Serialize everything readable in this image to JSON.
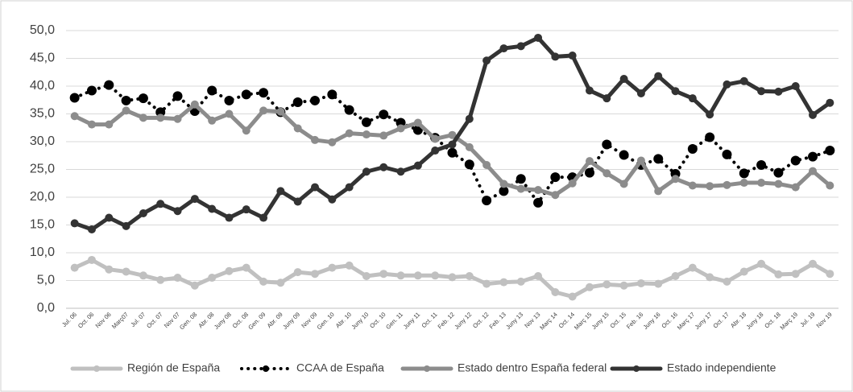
{
  "chart_data": {
    "type": "line",
    "categories": [
      "Jul. 06",
      "Oct. 06",
      "Nov 06",
      "Març07",
      "Jul. 07",
      "Oct. 07",
      "Nov 07",
      "Gen. 08",
      "Abr. 08",
      "Juny 08",
      "Oct. 08",
      "Gen. 09",
      "Abr. 09",
      "Juny 09",
      "Nov 09",
      "Gen. 10",
      "Abr. 10",
      "Juny 10",
      "Oct. 10",
      "Gen. 11",
      "Juny 11",
      "Oct. 11",
      "Feb. 12",
      "Juny 12",
      "Oct. 12",
      "Feb. 13",
      "Juny 13",
      "Nov 13",
      "Març 14",
      "Oct. 14",
      "Març 15",
      "Juny 15",
      "Oct. 15",
      "Feb. 16",
      "Juny 16",
      "Oct. 16",
      "Març 17",
      "Juny 17",
      "Oct. 17",
      "Abr. 18",
      "Juny 18",
      "Oct. 18",
      "Març 19",
      "Jul. 19",
      "Nov 19"
    ],
    "series": [
      {
        "name": "Región de España",
        "color": "#c0c0c0",
        "line_style": "solid",
        "values": [
          7.3,
          8.7,
          7.0,
          6.6,
          5.9,
          5.1,
          5.5,
          4.1,
          5.5,
          6.7,
          7.3,
          4.8,
          4.6,
          6.5,
          6.2,
          7.3,
          7.7,
          5.8,
          6.2,
          5.9,
          5.9,
          5.9,
          5.6,
          5.8,
          4.4,
          4.7,
          4.8,
          5.8,
          2.9,
          2.1,
          3.8,
          4.3,
          4.1,
          4.5,
          4.4,
          5.8,
          7.3,
          5.6,
          4.8,
          6.6,
          8.0,
          6.1,
          6.2,
          8.0,
          6.2
        ]
      },
      {
        "name": "CCAA de España",
        "color": "#000000",
        "line_style": "dotted",
        "values": [
          37.9,
          39.2,
          40.2,
          37.4,
          37.8,
          35.3,
          38.2,
          35.5,
          39.2,
          37.4,
          38.5,
          38.8,
          35.3,
          37.1,
          37.4,
          38.5,
          35.7,
          33.5,
          34.9,
          33.4,
          32.1,
          30.7,
          28.0,
          25.9,
          19.4,
          21.1,
          23.3,
          19.0,
          23.6,
          23.6,
          24.4,
          29.5,
          27.6,
          25.8,
          26.9,
          24.2,
          28.7,
          30.8,
          27.7,
          24.3,
          25.8,
          24.4,
          26.6,
          27.3,
          28.4
        ]
      },
      {
        "name": "Estado dentro España federal",
        "color": "#8c8c8c",
        "line_style": "solid",
        "values": [
          34.6,
          33.1,
          33.1,
          35.6,
          34.3,
          34.3,
          34.1,
          36.7,
          33.8,
          35.0,
          32.0,
          35.6,
          35.4,
          32.4,
          30.3,
          29.9,
          31.5,
          31.3,
          31.1,
          32.4,
          33.4,
          30.5,
          31.2,
          29.0,
          25.8,
          22.4,
          21.5,
          21.3,
          20.4,
          22.5,
          26.5,
          24.3,
          22.4,
          26.6,
          21.1,
          23.3,
          22.1,
          22.0,
          22.2,
          22.6,
          22.6,
          22.4,
          21.8,
          24.7,
          22.1
        ]
      },
      {
        "name": "Estado independiente",
        "color": "#333333",
        "line_style": "solid",
        "values": [
          15.3,
          14.2,
          16.3,
          14.8,
          17.1,
          18.8,
          17.5,
          19.7,
          17.9,
          16.3,
          17.8,
          16.3,
          21.1,
          19.2,
          21.8,
          19.6,
          21.8,
          24.6,
          25.4,
          24.6,
          25.7,
          28.4,
          29.5,
          34.1,
          44.6,
          46.8,
          47.2,
          48.7,
          45.3,
          45.5,
          39.2,
          37.8,
          41.3,
          38.7,
          41.8,
          39.1,
          37.8,
          34.9,
          40.3,
          40.9,
          39.1,
          39.0,
          40.0,
          34.8,
          37.0
        ]
      }
    ],
    "ylim": [
      0,
      50
    ],
    "yticks": [
      {
        "value": 0,
        "label": "0,0"
      },
      {
        "value": 5,
        "label": "5,0"
      },
      {
        "value": 10,
        "label": "10,0"
      },
      {
        "value": 15,
        "label": "15,0"
      },
      {
        "value": 20,
        "label": "20,0"
      },
      {
        "value": 25,
        "label": "25,0"
      },
      {
        "value": 30,
        "label": "30,0"
      },
      {
        "value": 35,
        "label": "35,0"
      },
      {
        "value": 40,
        "label": "40,0"
      },
      {
        "value": 45,
        "label": "45,0"
      },
      {
        "value": 50,
        "label": "50,0"
      }
    ],
    "grid": true,
    "legend": "bottom"
  }
}
